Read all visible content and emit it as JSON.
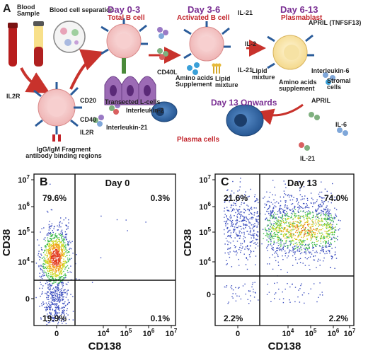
{
  "panel_a": {
    "letter": "A",
    "blood_sample": "Blood Sample",
    "blood_cell_separation": "Blood cell separation",
    "stages": [
      {
        "title": "Day 0-3",
        "subtitle": "Total B cell"
      },
      {
        "title": "Day 3-6",
        "subtitle": "Activated B cell"
      },
      {
        "title": "Day 6-13",
        "subtitle": "Plasmablast"
      }
    ],
    "day13": {
      "title": "Day 13 Onwards",
      "subtitle": "Plasma cells"
    },
    "labels": {
      "il2r_left": "IL2R",
      "cd20": "CD20",
      "cd40": "CD40",
      "il2r_bottom": "IL2R",
      "interleukin_2": "Interleukin-2",
      "interleukin_21": "Interleukin-21",
      "igg_igm": "IgG/IgM Fragment antibody binding regions",
      "cd40l": "CD40L",
      "transected": "Transected L-cells",
      "il21_top": "IL-21",
      "il2_mid": "IL-2",
      "il21_mid": "IL-21",
      "amino_acids_supplement": "Amino acids Supplement",
      "lipid_mixture_1": "Lipid mixture",
      "lipid_mixture_2": "Lipid mixture",
      "amino_acids_supplement_2": "Amino acids supplement",
      "april_tnfsf13": "APRIL (TNFSF13)",
      "interleukin_6": "Interleukin-6",
      "stromal_cells": "Stromal cells",
      "april": "APRIL",
      "il6": "IL-6",
      "il21_bottom": "IL-21"
    }
  },
  "colors": {
    "purple": "#7a2f93",
    "red": "#c2232a",
    "bcell": "#f4c6c6",
    "plasmablast": "#fbeab8",
    "plasma": "#3b72b0",
    "arrow": "#c8322c",
    "l_cell": "#9c6bb5"
  },
  "chart_data": [
    {
      "type": "scatter",
      "panel": "B",
      "title": "Day 0",
      "xlabel": "CD138",
      "ylabel": "CD38",
      "x_ticks": [
        "0",
        "10^4",
        "10^5",
        "10^6",
        "10^7"
      ],
      "y_ticks": [
        "0",
        "10^4",
        "10^5",
        "10^6",
        "10^7"
      ],
      "quadrants": {
        "top_left": "79.6%",
        "top_right": "0.3%",
        "bottom_left": "19.9%",
        "bottom_right": "0.1%"
      }
    },
    {
      "type": "scatter",
      "panel": "C",
      "title": "Day 13",
      "xlabel": "CD138",
      "ylabel": "CD38",
      "x_ticks": [
        "0",
        "10^4",
        "10^5",
        "10^6",
        "10^7"
      ],
      "y_ticks": [
        "0",
        "10^4",
        "10^5",
        "10^6",
        "10^7"
      ],
      "quadrants": {
        "top_left": "21.6%",
        "top_right": "74.0%",
        "bottom_left": "2.2%",
        "bottom_right": "2.2%"
      }
    }
  ]
}
